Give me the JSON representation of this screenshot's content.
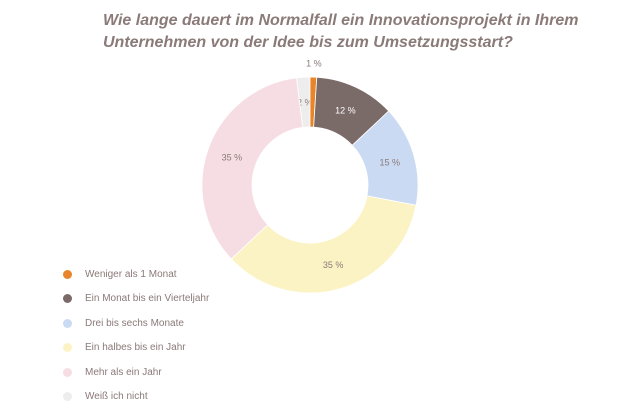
{
  "chart_data": {
    "type": "pie",
    "donut": true,
    "title_lines": [
      "Wie lange dauert im Normalfall ein Innovationsprojekt in Ihrem",
      "Unternehmen von der Idee bis zum Umsetzungsstart?"
    ],
    "categories": [
      "Weniger als 1 Monat",
      "Ein Monat bis ein Vierteljahr",
      "Drei bis sechs Monate",
      "Ein halbes bis ein Jahr",
      "Mehr als ein Jahr",
      "Weiß ich nicht"
    ],
    "values": [
      1,
      12,
      15,
      35,
      35,
      2
    ],
    "value_labels": [
      "1 %",
      "12 %",
      "15 %",
      "35 %",
      "35 %",
      "2 %"
    ],
    "colors": [
      "#e8852a",
      "#7a6a68",
      "#cbdaf3",
      "#fcf3c4",
      "#f6dde3",
      "#ededed"
    ],
    "label_colors": [
      "#8a7a78",
      "#ffffff",
      "#8a7a78",
      "#8a7a78",
      "#8a7a78",
      "#8a7a78"
    ],
    "legend_position": "left-bottom"
  }
}
